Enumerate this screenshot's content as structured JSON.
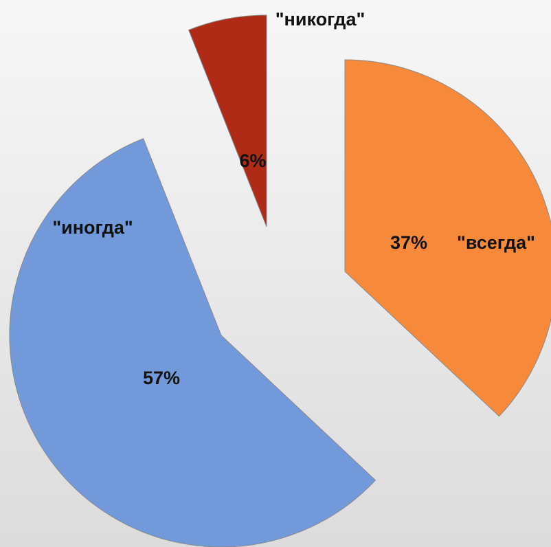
{
  "chart_data": {
    "type": "pie",
    "categories": [
      "\"всегда\"",
      "\"иногда\"",
      "\"никогда\""
    ],
    "values": [
      37,
      57,
      6
    ],
    "value_labels": [
      "37%",
      "57%",
      "6%"
    ],
    "colors": [
      "#f7893a",
      "#7299d9",
      "#b02b15"
    ]
  }
}
